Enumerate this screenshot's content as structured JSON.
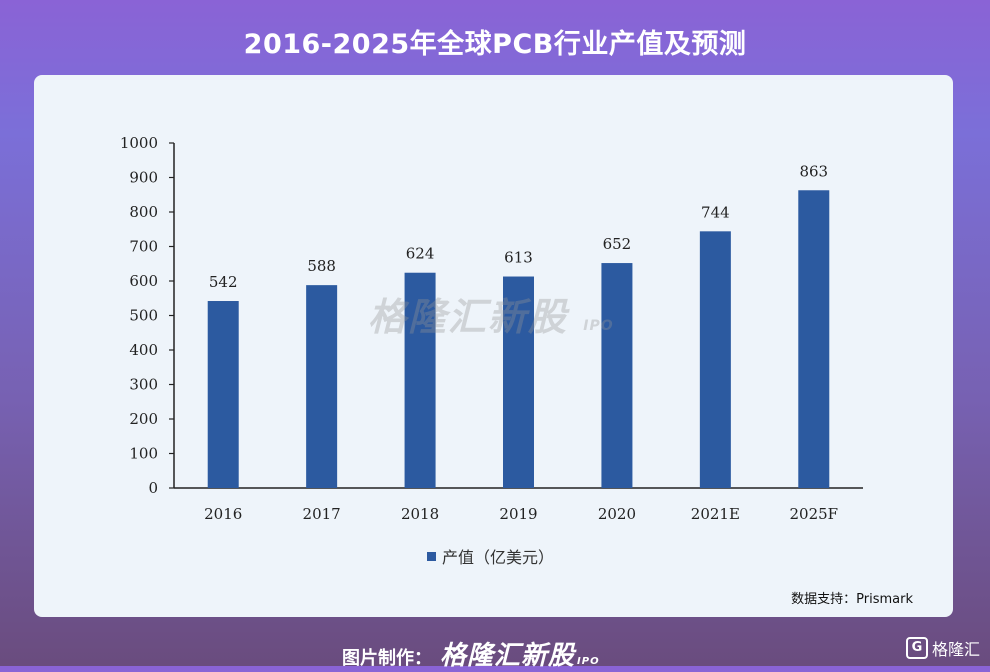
{
  "title": "2016-2025年全球PCB行业产值及预测",
  "source": "数据支持：Prismark",
  "watermark": {
    "brand": "格隆汇新股",
    "suffix": "IPO"
  },
  "footer": {
    "maker_label": "图片制作：",
    "brand": "格隆汇新股",
    "brand_suffix": "IPO",
    "corner_logo_text": "格隆汇",
    "corner_logo_glyph": "G"
  },
  "colors": {
    "bar": "#2c5aa0",
    "axis": "#222222"
  },
  "chart_data": {
    "type": "bar",
    "categories": [
      "2016",
      "2017",
      "2018",
      "2019",
      "2020",
      "2021E",
      "2025F"
    ],
    "series": [
      {
        "name": "产值（亿美元）",
        "values": [
          542,
          588,
          624,
          613,
          652,
          744,
          863
        ]
      }
    ],
    "ylim": [
      0,
      1000
    ],
    "yticks": [
      "0",
      "100",
      "200",
      "300",
      "400",
      "500",
      "600",
      "700",
      "800",
      "900",
      "1000"
    ],
    "data_labels": [
      "542",
      "588",
      "624",
      "613",
      "652",
      "744",
      "863"
    ],
    "legend": "bottom",
    "grid": false
  }
}
